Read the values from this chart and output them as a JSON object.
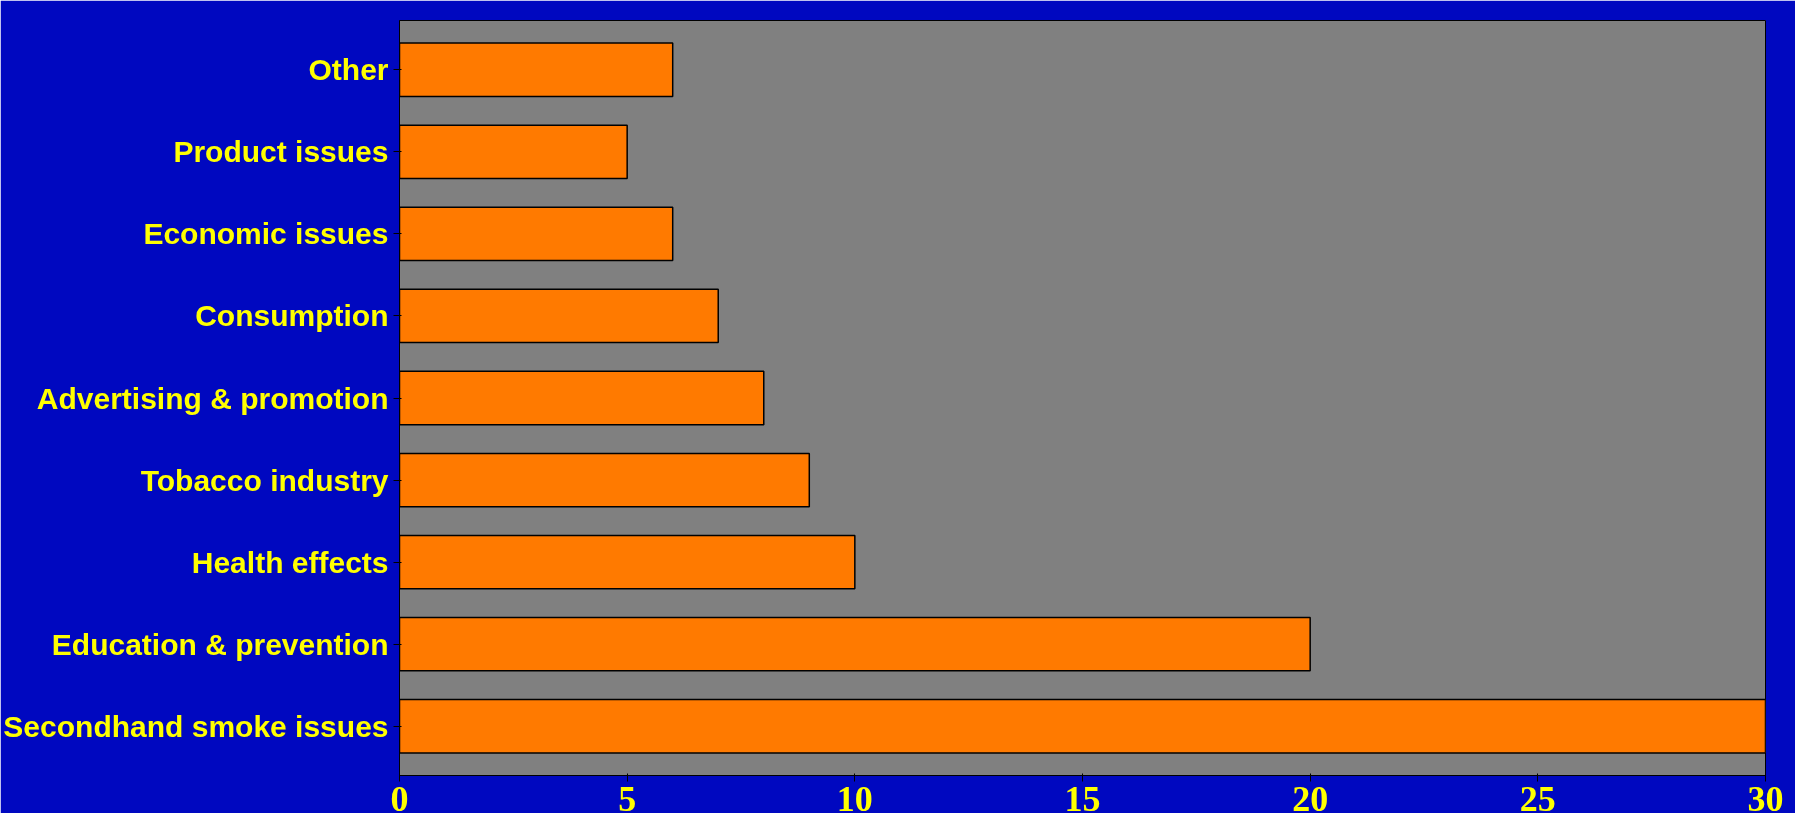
{
  "chart_data": {
    "type": "bar",
    "orientation": "horizontal",
    "categories": [
      "Other",
      "Product issues",
      "Economic issues",
      "Consumption",
      "Advertising & promotion",
      "Tobacco industry",
      "Health effects",
      "Education & prevention",
      "Secondhand smoke issues"
    ],
    "values": [
      6,
      5,
      6,
      7,
      8,
      9,
      10,
      20,
      30
    ],
    "color": "#ff7a00",
    "xlim": [
      0,
      30
    ],
    "xticks": [
      0,
      5,
      10,
      15,
      20,
      25,
      30
    ],
    "grid": false
  }
}
